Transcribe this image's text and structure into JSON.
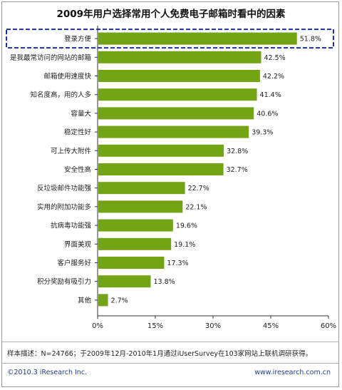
{
  "chart_data": {
    "type": "bar",
    "orientation": "horizontal",
    "title": "2009年用户选择常用个人免费电子邮箱时看中的因素",
    "categories": [
      "登录方便",
      "是我最常访问的网站的邮箱",
      "邮箱使用速度快",
      "知名度高，用的人多",
      "容量大",
      "稳定性好",
      "可上传大附件",
      "安全性高",
      "反垃圾邮件功能强",
      "实用的附加功能多",
      "抗病毒功能强",
      "界面美观",
      "客户服务好",
      "积分奖励有吸引力",
      "其他"
    ],
    "values": [
      51.8,
      42.5,
      42.2,
      41.4,
      40.6,
      39.3,
      32.8,
      32.7,
      22.7,
      22.1,
      19.6,
      19.1,
      17.3,
      13.8,
      2.7
    ],
    "value_labels": [
      "51.8%",
      "42.5%",
      "42.2%",
      "41.4%",
      "40.6%",
      "39.3%",
      "32.8%",
      "32.7%",
      "22.7%",
      "22.1%",
      "19.6%",
      "19.1%",
      "17.3%",
      "13.8%",
      "2.7%"
    ],
    "xlim": [
      0,
      60
    ],
    "x_ticks": [
      0,
      15,
      30,
      45,
      60
    ],
    "x_tick_labels": [
      "0%",
      "15%",
      "30%",
      "45%",
      "60%"
    ],
    "highlighted_category": "登录方便",
    "bar_color": "#72a414",
    "highlight_border_color": "#1a2f9c",
    "grid": false
  },
  "note": "样本描述：N=24766；于2009年12月-2010年1月通过iUserSurvey在103家网站上联机调研获得。",
  "footer": {
    "copyright": "©2010.3 iResearch Inc.",
    "website": "www.iresearch.com.cn"
  }
}
